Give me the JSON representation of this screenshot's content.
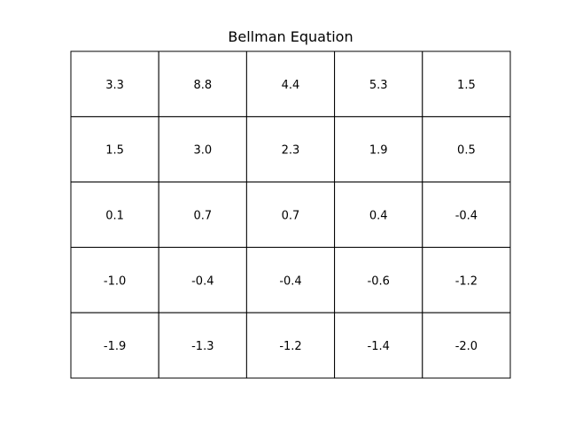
{
  "chart_data": {
    "type": "table",
    "title": "Bellman Equation",
    "rows": [
      [
        "3.3",
        "8.8",
        "4.4",
        "5.3",
        "1.5"
      ],
      [
        "1.5",
        "3.0",
        "2.3",
        "1.9",
        "0.5"
      ],
      [
        "0.1",
        "0.7",
        "0.7",
        "0.4",
        "-0.4"
      ],
      [
        "-1.0",
        "-0.4",
        "-0.4",
        "-0.6",
        "-1.2"
      ],
      [
        "-1.9",
        "-1.3",
        "-1.2",
        "-1.4",
        "-2.0"
      ]
    ],
    "grid_color": "#000000",
    "cell_background": "#ffffff",
    "text_color": "#000000"
  }
}
